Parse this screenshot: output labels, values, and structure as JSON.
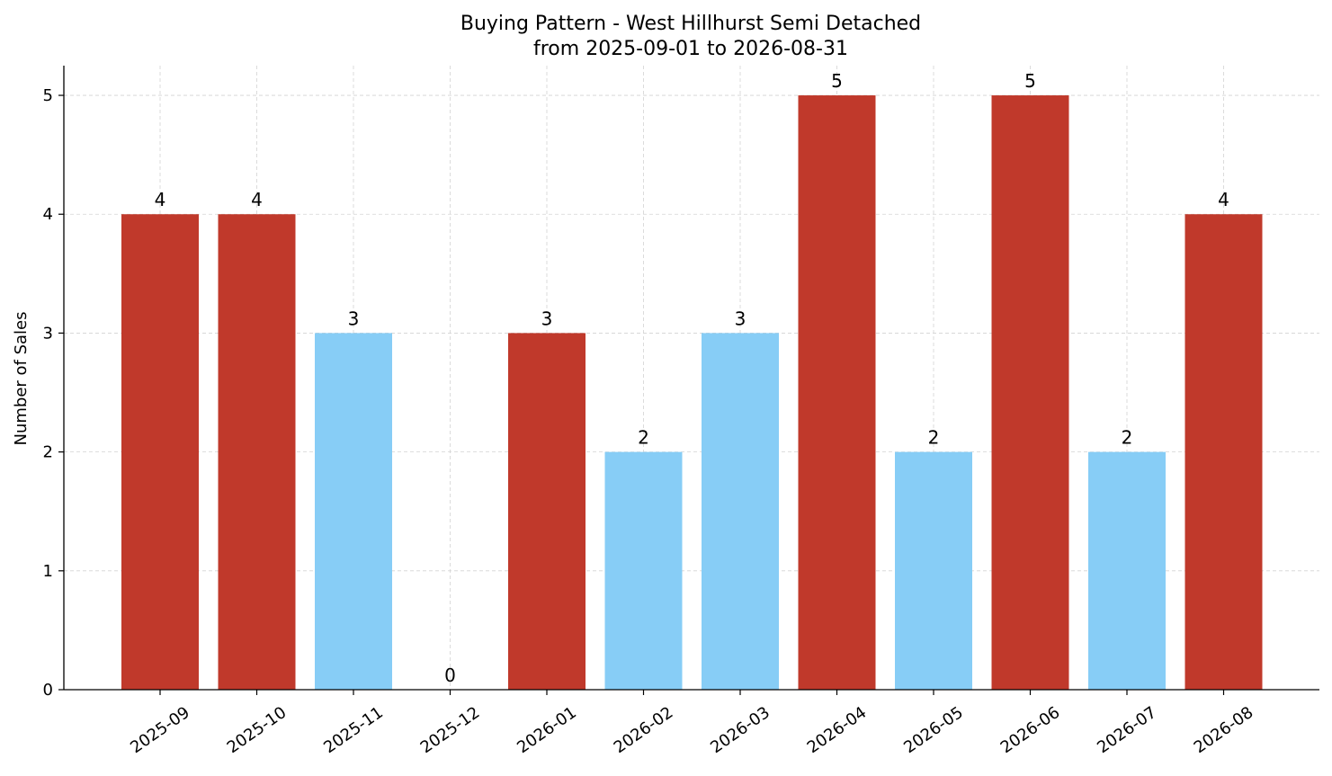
{
  "chart_data": {
    "type": "bar",
    "title": "Buying Pattern - West Hillhurst Semi Detached",
    "subtitle": "from 2025-09-01 to 2026-08-31",
    "xlabel": "",
    "ylabel": "Number of Sales",
    "categories": [
      "2025-09",
      "2025-10",
      "2025-11",
      "2025-12",
      "2026-01",
      "2026-02",
      "2026-03",
      "2026-04",
      "2026-05",
      "2026-06",
      "2026-07",
      "2026-08"
    ],
    "values": [
      4,
      4,
      3,
      0,
      3,
      2,
      3,
      5,
      2,
      5,
      2,
      4
    ],
    "bar_colors": [
      "#c0392b",
      "#c0392b",
      "#87cdf6",
      "#87cdf6",
      "#c0392b",
      "#87cdf6",
      "#87cdf6",
      "#c0392b",
      "#87cdf6",
      "#c0392b",
      "#87cdf6",
      "#c0392b"
    ],
    "yticks": [
      0,
      1,
      2,
      3,
      4,
      5
    ],
    "ylim": [
      0,
      5.25
    ],
    "grid": true,
    "legend": "none"
  }
}
